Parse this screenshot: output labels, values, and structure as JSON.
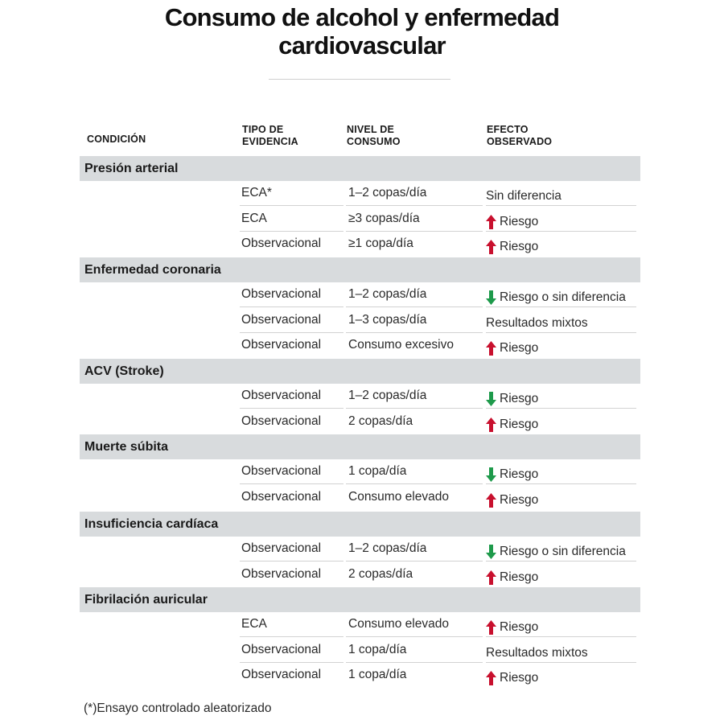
{
  "title": "Consumo de alcohol y enfermedad cardiovascular",
  "title_line1": "Consumo de alcohol y enfermedad",
  "title_line2": "cardiovascular",
  "headers": {
    "condition": "CONDICIÓN",
    "evidence_1": "TIPO DE",
    "evidence_2": "EVIDENCIA",
    "consumption_1": "NIVEL DE",
    "consumption_2": "CONSUMO",
    "effect_1": "EFECTO",
    "effect_2": "OBSERVADO"
  },
  "colors": {
    "up_arrow": "#c8102e",
    "down_arrow": "#1e9a4b",
    "band": "#d8dbdd"
  },
  "groups": [
    {
      "condition": "Presión arterial",
      "rows": [
        {
          "evidence": "ECA*",
          "consumption": "1–2 copas/día",
          "arrow": "none",
          "effect": "Sin diferencia"
        },
        {
          "evidence": "ECA",
          "consumption": "≥3 copas/día",
          "arrow": "up",
          "effect": "Riesgo"
        },
        {
          "evidence": "Observacional",
          "consumption": "≥1 copa/día",
          "arrow": "up",
          "effect": "Riesgo"
        }
      ]
    },
    {
      "condition": "Enfermedad coronaria",
      "rows": [
        {
          "evidence": "Observacional",
          "consumption": "1–2 copas/día",
          "arrow": "down",
          "effect": "Riesgo o sin diferencia"
        },
        {
          "evidence": "Observacional",
          "consumption": "1–3 copas/día",
          "arrow": "none",
          "effect": "Resultados mixtos"
        },
        {
          "evidence": "Observacional",
          "consumption": "Consumo excesivo",
          "arrow": "up",
          "effect": "Riesgo"
        }
      ]
    },
    {
      "condition": "ACV (Stroke)",
      "rows": [
        {
          "evidence": "Observacional",
          "consumption": "1–2 copas/día",
          "arrow": "down",
          "effect": "Riesgo"
        },
        {
          "evidence": "Observacional",
          "consumption": "2 copas/día",
          "arrow": "up",
          "effect": "Riesgo"
        }
      ]
    },
    {
      "condition": "Muerte súbita",
      "rows": [
        {
          "evidence": "Observacional",
          "consumption": "1 copa/día",
          "arrow": "down",
          "effect": "Riesgo"
        },
        {
          "evidence": "Observacional",
          "consumption": "Consumo elevado",
          "arrow": "up",
          "effect": "Riesgo"
        }
      ]
    },
    {
      "condition": "Insuficiencia cardíaca",
      "rows": [
        {
          "evidence": "Observacional",
          "consumption": "1–2 copas/día",
          "arrow": "down",
          "effect": "Riesgo o sin diferencia"
        },
        {
          "evidence": "Observacional",
          "consumption": "2 copas/día",
          "arrow": "up",
          "effect": "Riesgo"
        }
      ]
    },
    {
      "condition": "Fibrilación auricular",
      "rows": [
        {
          "evidence": "ECA",
          "consumption": "Consumo elevado",
          "arrow": "up",
          "effect": "Riesgo"
        },
        {
          "evidence": "Observacional",
          "consumption": "1 copa/día",
          "arrow": "none",
          "effect": "Resultados mixtos"
        },
        {
          "evidence": "Observacional",
          "consumption": "1 copa/día",
          "arrow": "up",
          "effect": "Riesgo"
        }
      ]
    }
  ],
  "footnote": "(*)Ensayo controlado aleatorizado"
}
